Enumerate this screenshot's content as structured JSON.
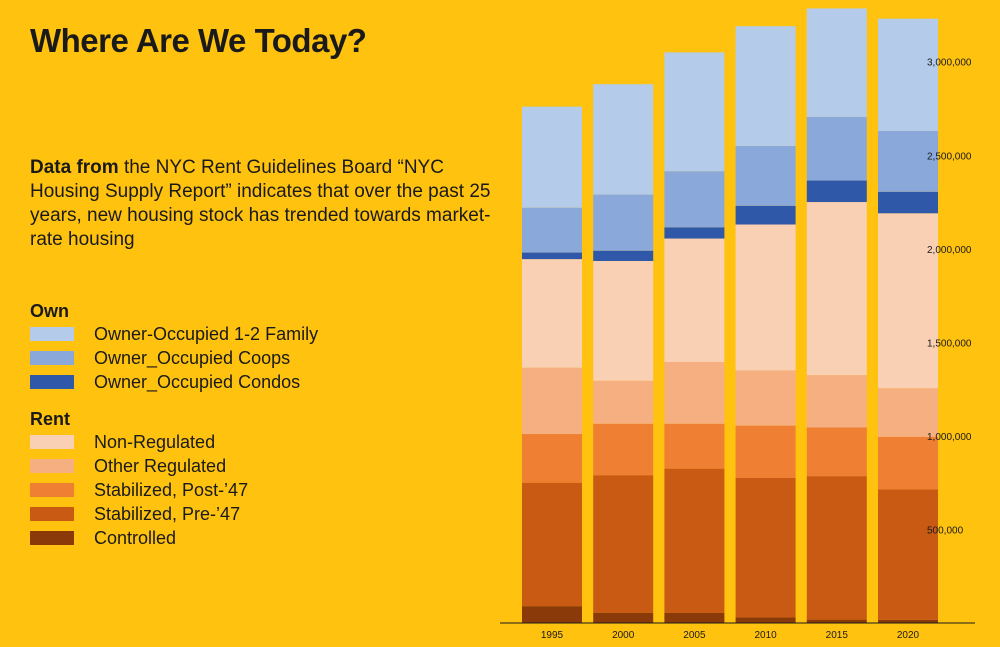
{
  "page": {
    "title": "Where Are We Today?",
    "desc_bold": "Data from",
    "desc_rest": " the NYC Rent Guidelines Board “NYC Housing Supply Report” indicates that over the past 25 years, new housing stock has trended towards market-rate housing"
  },
  "legend": {
    "own_title": "Own",
    "rent_title": "Rent"
  },
  "colors": {
    "background": "#FFC20F",
    "owner_1_2_family": "#B5CBEA",
    "owner_coops": "#8BA8DA",
    "owner_condos": "#2F59A8",
    "non_regulated": "#F9D0B3",
    "other_regulated": "#F6AF80",
    "stabilized_post47": "#EE7F33",
    "stabilized_pre47": "#C85A14",
    "controlled": "#8A3A08"
  },
  "chart_data": {
    "type": "bar",
    "stacked": true,
    "categories": [
      "1995",
      "2000",
      "2005",
      "2010",
      "2015",
      "2020"
    ],
    "y_ticks": [
      500000,
      1000000,
      1500000,
      2000000,
      2500000,
      3000000
    ],
    "y_tick_labels": [
      "500,000",
      "1,000,000",
      "1,500,000",
      "2,000,000",
      "2,500,000",
      "3,000,000"
    ],
    "ylim": [
      0,
      3330000
    ],
    "y_axis_side": "right",
    "series": [
      {
        "name": "Controlled",
        "group": "Rent",
        "color_key": "controlled",
        "values": [
          90000,
          55000,
          55000,
          30000,
          18000,
          17000
        ]
      },
      {
        "name": "Stabilized, Pre-’47",
        "group": "Rent",
        "color_key": "stabilized_pre47",
        "values": [
          660000,
          735000,
          770000,
          745000,
          767000,
          698000
        ]
      },
      {
        "name": "Stabilized, Post-’47",
        "group": "Rent",
        "color_key": "stabilized_post47",
        "values": [
          260000,
          275000,
          240000,
          280000,
          260000,
          280000
        ]
      },
      {
        "name": "Other Regulated",
        "group": "Rent",
        "color_key": "other_regulated",
        "values": [
          355000,
          230000,
          330000,
          295000,
          280000,
          260000
        ]
      },
      {
        "name": "Non-Regulated",
        "group": "Rent",
        "color_key": "non_regulated",
        "values": [
          580000,
          640000,
          660000,
          780000,
          925000,
          935000
        ]
      },
      {
        "name": "Owner_Occupied Condos",
        "group": "Own",
        "color_key": "owner_condos",
        "values": [
          35000,
          55000,
          60000,
          100000,
          115000,
          115000
        ]
      },
      {
        "name": "Owner_Occupied Coops",
        "group": "Own",
        "color_key": "owner_coops",
        "values": [
          240000,
          300000,
          300000,
          320000,
          340000,
          325000
        ]
      },
      {
        "name": "Owner-Occupied 1-2 Family",
        "group": "Own",
        "color_key": "owner_1_2_family",
        "values": [
          540000,
          590000,
          635000,
          640000,
          580000,
          600000
        ]
      }
    ],
    "title": "",
    "xlabel": "",
    "ylabel": ""
  }
}
